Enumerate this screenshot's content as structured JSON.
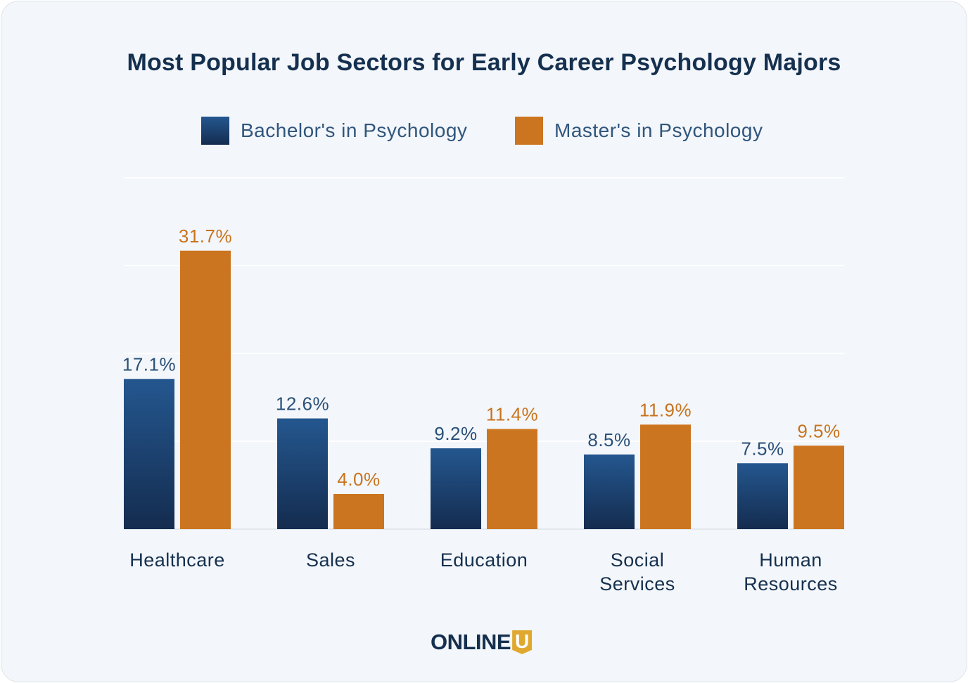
{
  "chart_data": {
    "type": "bar",
    "title": "Most Popular Job Sectors for Early Career Psychology Majors",
    "categories": [
      "Healthcare",
      "Sales",
      "Education",
      "Social Services",
      "Human Resources"
    ],
    "category_lines": [
      [
        "Healthcare"
      ],
      [
        "Sales"
      ],
      [
        "Education"
      ],
      [
        "Social",
        "Services"
      ],
      [
        "Human",
        "Resources"
      ]
    ],
    "series": [
      {
        "name": "Bachelor's in Psychology",
        "values": [
          17.1,
          12.6,
          9.2,
          8.5,
          7.5
        ],
        "labels": [
          "17.1%",
          "12.6%",
          "9.2%",
          "8.5%",
          "7.5%"
        ],
        "color": "#1f4a7c"
      },
      {
        "name": "Master's in Psychology",
        "values": [
          31.7,
          4.0,
          11.4,
          11.9,
          9.5
        ],
        "labels": [
          "31.7%",
          "4.0%",
          "11.4%",
          "11.9%",
          "9.5%"
        ],
        "color": "#cc7520"
      }
    ],
    "ylim": [
      0,
      40
    ],
    "grid": true,
    "legend": "top-center",
    "xlabel": "",
    "ylabel": ""
  },
  "colors": {
    "bachelor_top": "#24578f",
    "bachelor_bottom": "#142c4f",
    "bachelor_label": "#2a5078",
    "master": "#cc7520",
    "master_label": "#c8741f",
    "title": "#15304f",
    "gridline": "#ffffff"
  },
  "logo": {
    "text": "ONLINE",
    "badge": "U"
  }
}
